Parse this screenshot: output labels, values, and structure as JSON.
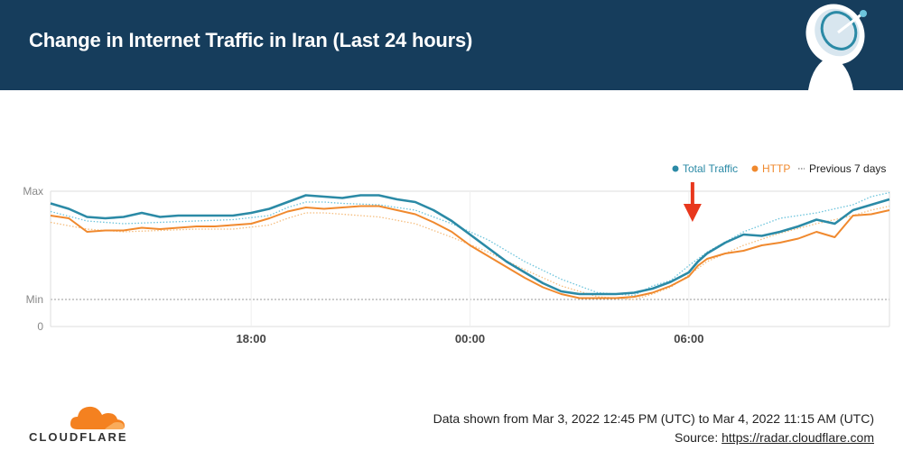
{
  "header": {
    "title": "Change in Internet Traffic in Iran (Last 24 hours)",
    "background": "#163d5c"
  },
  "legend": [
    {
      "label": "Total Traffic",
      "color": "#2b8aa6"
    },
    {
      "label": "HTTP",
      "color": "#f0892e"
    },
    {
      "label": "Previous 7 days",
      "color": "#555555"
    }
  ],
  "chart_data": {
    "type": "line",
    "x_ticks": [
      "18:00",
      "00:00",
      "06:00"
    ],
    "y_ticks": [
      "Max",
      "Min",
      "0"
    ],
    "x_range": [
      0,
      23
    ],
    "y_range": [
      0,
      100
    ],
    "y_reference": {
      "label": "Min",
      "value": 20
    },
    "grid": true,
    "legend_position": "top-right",
    "annotation": {
      "type": "arrow",
      "color": "#e8371d",
      "x": 17.6
    },
    "series": [
      {
        "name": "Total Traffic",
        "color": "#2b8aa6",
        "style": "solid",
        "x": [
          0,
          0.5,
          1,
          1.5,
          2,
          2.5,
          3,
          3.5,
          4,
          4.5,
          5,
          5.5,
          6,
          6.5,
          7,
          7.5,
          8,
          8.5,
          9,
          9.5,
          10,
          10.5,
          11,
          11.5,
          12,
          12.5,
          13,
          13.5,
          14,
          14.5,
          15,
          15.5,
          16,
          16.5,
          17,
          17.5,
          17.75,
          18,
          18.5,
          19,
          19.5,
          20,
          20.5,
          21,
          21.5,
          22,
          22.5,
          23
        ],
        "y": [
          91,
          87,
          81,
          80,
          81,
          84,
          81,
          82,
          82,
          82,
          82,
          84,
          87,
          92,
          97,
          96,
          95,
          97,
          97,
          94,
          92,
          86,
          78,
          68,
          58,
          48,
          40,
          32,
          26,
          24,
          24,
          24,
          25,
          28,
          33,
          40,
          48,
          54,
          62,
          68,
          67,
          70,
          74,
          79,
          76,
          86,
          90,
          94
        ]
      },
      {
        "name": "HTTP",
        "color": "#f0892e",
        "style": "solid",
        "x": [
          0,
          0.5,
          1,
          1.5,
          2,
          2.5,
          3,
          3.5,
          4,
          4.5,
          5,
          5.5,
          6,
          6.5,
          7,
          7.5,
          8,
          8.5,
          9,
          9.5,
          10,
          10.5,
          11,
          11.5,
          12,
          12.5,
          13,
          13.5,
          14,
          14.5,
          15,
          15.5,
          16,
          16.5,
          17,
          17.5,
          17.75,
          18,
          18.5,
          19,
          19.5,
          20,
          20.5,
          21,
          21.5,
          22,
          22.5,
          23
        ],
        "y": [
          82,
          80,
          70,
          71,
          71,
          73,
          72,
          73,
          74,
          74,
          75,
          76,
          80,
          85,
          88,
          87,
          88,
          89,
          89,
          86,
          83,
          77,
          70,
          60,
          52,
          44,
          36,
          29,
          24,
          21,
          21,
          21,
          22,
          25,
          30,
          37,
          45,
          50,
          54,
          56,
          60,
          62,
          65,
          70,
          66,
          82,
          83,
          86
        ]
      },
      {
        "name": "Total Traffic (previous 7 days)",
        "color": "#6cc4dc",
        "style": "dotted",
        "x": [
          0,
          1,
          2,
          3,
          4,
          5,
          6,
          6.5,
          7,
          7.5,
          8,
          9,
          10,
          11,
          12,
          13,
          14,
          15,
          16,
          16.5,
          17,
          17.5,
          18,
          19,
          20,
          21,
          22,
          22.5,
          23
        ],
        "y": [
          85,
          78,
          76,
          77,
          78,
          79,
          82,
          88,
          92,
          92,
          91,
          90,
          86,
          76,
          64,
          48,
          35,
          25,
          23,
          30,
          34,
          45,
          55,
          70,
          80,
          84,
          90,
          96,
          99
        ]
      },
      {
        "name": "HTTP (previous 7 days)",
        "color": "#f5bd7e",
        "style": "dotted",
        "x": [
          0,
          1,
          2,
          3,
          4,
          5,
          6,
          6.5,
          7,
          7.5,
          8,
          9,
          10,
          11,
          12,
          13,
          14,
          15,
          16,
          16.5,
          17,
          17.5,
          18,
          19,
          20,
          21,
          22,
          22.5,
          23
        ],
        "y": [
          77,
          72,
          70,
          71,
          72,
          72,
          75,
          80,
          84,
          84,
          83,
          81,
          76,
          66,
          55,
          42,
          30,
          22,
          20,
          24,
          29,
          38,
          48,
          60,
          69,
          76,
          82,
          86,
          89
        ]
      }
    ]
  },
  "footer": {
    "logo_text": "CLOUDFLARE",
    "date_range": "Data shown from Mar 3, 2022 12:45 PM (UTC) to Mar 4, 2022 11:15 AM (UTC)",
    "source_label": "Source: ",
    "source_link": "https://radar.cloudflare.com",
    "logo_color": "#f48120"
  }
}
